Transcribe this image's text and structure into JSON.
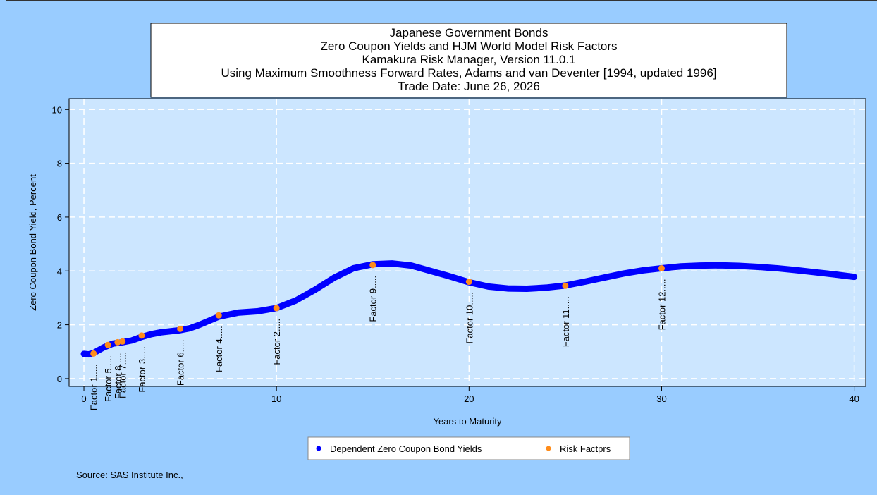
{
  "chart_data": {
    "type": "scatter",
    "title_lines": [
      "Japanese Government Bonds",
      "Zero Coupon Yields and HJM World Model Risk Factors",
      "Kamakura Risk Manager, Version 11.0.1",
      "Using Maximum Smoothness Forward Rates, Adams and van Deventer [1994, updated 1996]",
      "Trade Date: June 26, 2026"
    ],
    "xlabel": "Years to Maturity",
    "ylabel": "Zero Coupon Bond Yield, Percent",
    "source": "Source: SAS Institute Inc.,",
    "xlim": [
      -0.77,
      40.6
    ],
    "ylim": [
      -0.29,
      10.4
    ],
    "xticks": [
      0,
      10,
      20,
      30,
      40
    ],
    "yticks": [
      0,
      2,
      4,
      6,
      8,
      10
    ],
    "grid": true,
    "legend": "bottom",
    "series": [
      {
        "name": "Dependent Zero Coupon Bond Yields",
        "color": "#0000ff",
        "x": [
          0,
          0.25,
          0.5,
          1,
          1.5,
          2,
          2.5,
          3,
          3.5,
          4,
          5,
          5.5,
          6,
          7,
          8,
          9,
          10,
          11,
          12,
          13,
          14,
          15,
          16,
          17,
          18,
          19,
          20,
          21,
          22,
          23,
          24,
          25,
          26,
          27,
          28,
          29,
          30,
          31,
          32,
          33,
          34,
          35,
          36,
          37,
          38,
          39,
          40
        ],
        "values": [
          0.92,
          0.9,
          0.95,
          1.15,
          1.3,
          1.35,
          1.42,
          1.55,
          1.65,
          1.72,
          1.8,
          1.87,
          2.0,
          2.3,
          2.45,
          2.5,
          2.62,
          2.9,
          3.3,
          3.75,
          4.1,
          4.25,
          4.28,
          4.2,
          4.0,
          3.8,
          3.58,
          3.42,
          3.35,
          3.34,
          3.38,
          3.46,
          3.6,
          3.75,
          3.9,
          4.02,
          4.1,
          4.17,
          4.2,
          4.21,
          4.19,
          4.15,
          4.1,
          4.03,
          3.95,
          3.87,
          3.78
        ]
      },
      {
        "name": "Risk Factprs",
        "color": "#ff8c1a",
        "x": [
          0.5,
          1.25,
          1.75,
          2,
          3,
          5,
          7,
          10,
          15,
          20,
          25,
          30
        ],
        "values": [
          0.93,
          1.25,
          1.35,
          1.38,
          1.6,
          1.85,
          2.35,
          2.62,
          4.22,
          3.6,
          3.45,
          4.1
        ],
        "point_labels": [
          "Factor 1.....",
          "Factor 5.....",
          "Factor 8.....",
          "Factor 7.....",
          "Factor 3.....",
          "Factor 6.....",
          "Factor 4.....",
          "Factor 2.....",
          "Factor 9.....",
          "Factor 10.....",
          "Factor 11.....",
          "Factor 12....."
        ]
      }
    ]
  }
}
